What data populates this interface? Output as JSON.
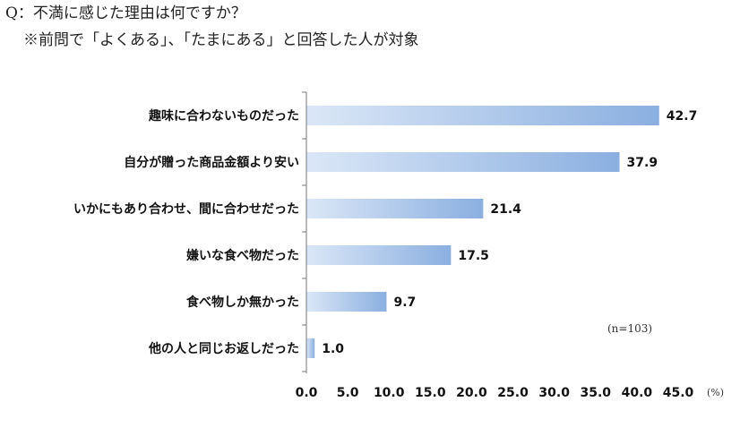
{
  "header": {
    "question": "Q：不満に感じた理由は何ですか？",
    "note": "※前問で「よくある」、「たまにある」と回答した人が対象"
  },
  "colors": {
    "bar_start": "#dbe7f7",
    "bar_end": "#8aafe0",
    "axis": "#777777"
  },
  "chart_data": {
    "type": "bar",
    "orientation": "horizontal",
    "categories": [
      "趣味に合わないものだった",
      "自分が贈った商品金額より安い",
      "いかにもあり合わせ、間に合わせだった",
      "嫌いな食べ物だった",
      "食べ物しか無かった",
      "他の人と同じお返しだった"
    ],
    "values": [
      42.7,
      37.9,
      21.4,
      17.5,
      9.7,
      1.0
    ],
    "value_labels": [
      "42.7",
      "37.9",
      "21.4",
      "17.5",
      "9.7",
      "1.0"
    ],
    "xlim": [
      0,
      45
    ],
    "x_ticks": [
      "0.0",
      "5.0",
      "10.0",
      "15.0",
      "20.0",
      "25.0",
      "30.0",
      "35.0",
      "40.0",
      "45.0"
    ],
    "x_unit": "(%)",
    "sample_note": "(n=103)",
    "grid": false
  }
}
